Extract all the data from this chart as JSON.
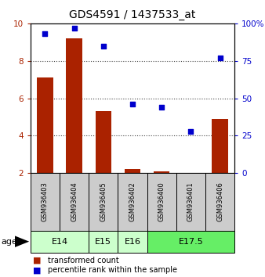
{
  "title": "GDS4591 / 1437533_at",
  "samples": [
    "GSM936403",
    "GSM936404",
    "GSM936405",
    "GSM936402",
    "GSM936400",
    "GSM936401",
    "GSM936406"
  ],
  "transformed_count": [
    7.1,
    9.2,
    5.3,
    2.2,
    2.1,
    2.0,
    4.9
  ],
  "percentile_rank": [
    93,
    97,
    85,
    46,
    44,
    28,
    77
  ],
  "ylim_left": [
    2,
    10
  ],
  "ylim_right": [
    0,
    100
  ],
  "yticks_left": [
    2,
    4,
    6,
    8,
    10
  ],
  "ytick_labels_right": [
    "0",
    "25",
    "50",
    "75",
    "100%"
  ],
  "ytick_vals_right": [
    0,
    25,
    50,
    75,
    100
  ],
  "bar_color": "#aa2200",
  "dot_color": "#0000cc",
  "age_groups": [
    {
      "label": "E14",
      "samples": [
        0,
        1
      ],
      "color": "#ccffcc"
    },
    {
      "label": "E15",
      "samples": [
        2
      ],
      "color": "#ccffcc"
    },
    {
      "label": "E16",
      "samples": [
        3
      ],
      "color": "#ccffcc"
    },
    {
      "label": "E17.5",
      "samples": [
        4,
        5,
        6
      ],
      "color": "#66ee66"
    }
  ],
  "age_label": "age",
  "legend_bar_label": "transformed count",
  "legend_dot_label": "percentile rank within the sample",
  "bg_color": "#ffffff",
  "sample_box_color": "#cccccc",
  "gridline_color": "#444444",
  "gridline_ticks": [
    4,
    6,
    8
  ],
  "title_fontsize": 10,
  "tick_fontsize": 7.5,
  "sample_fontsize": 6,
  "age_fontsize": 8,
  "legend_fontsize": 7
}
